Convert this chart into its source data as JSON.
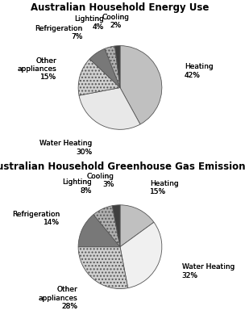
{
  "chart1": {
    "title": "Australian Household Energy Use",
    "values": [
      42,
      30,
      15,
      7,
      4,
      2
    ],
    "label_lines": [
      "Heating\n42%",
      "Water Heating\n30%",
      "Other\nappliances\n15%",
      "Refrigeration\n7%",
      "Lighting\n4%",
      "Cooling\n2%"
    ],
    "colors": [
      "#c0c0c0",
      "#e8e8e8",
      "#d0d0d0",
      "#787878",
      "#b0b0b0",
      "#404040"
    ],
    "hatches": [
      "",
      "",
      "....",
      "",
      "....",
      ""
    ],
    "startangle": 90,
    "counterclock": false
  },
  "chart2": {
    "title": "Australian Household Greenhouse Gas Emissions",
    "values": [
      15,
      32,
      28,
      14,
      8,
      3
    ],
    "label_lines": [
      "Heating\n15%",
      "Water Heating\n32%",
      "Other\nappliances\n28%",
      "Refrigeration\n14%",
      "Lighting\n8%",
      "Cooling\n3%"
    ],
    "colors": [
      "#c0c0c0",
      "#f0f0f0",
      "#d0d0d0",
      "#787878",
      "#b0b0b0",
      "#404040"
    ],
    "hatches": [
      "",
      "",
      "....",
      "",
      "....",
      ""
    ],
    "startangle": 90,
    "counterclock": false
  },
  "bg_color": "#ffffff",
  "title_fontsize": 8.5,
  "label_fontsize": 6.5
}
